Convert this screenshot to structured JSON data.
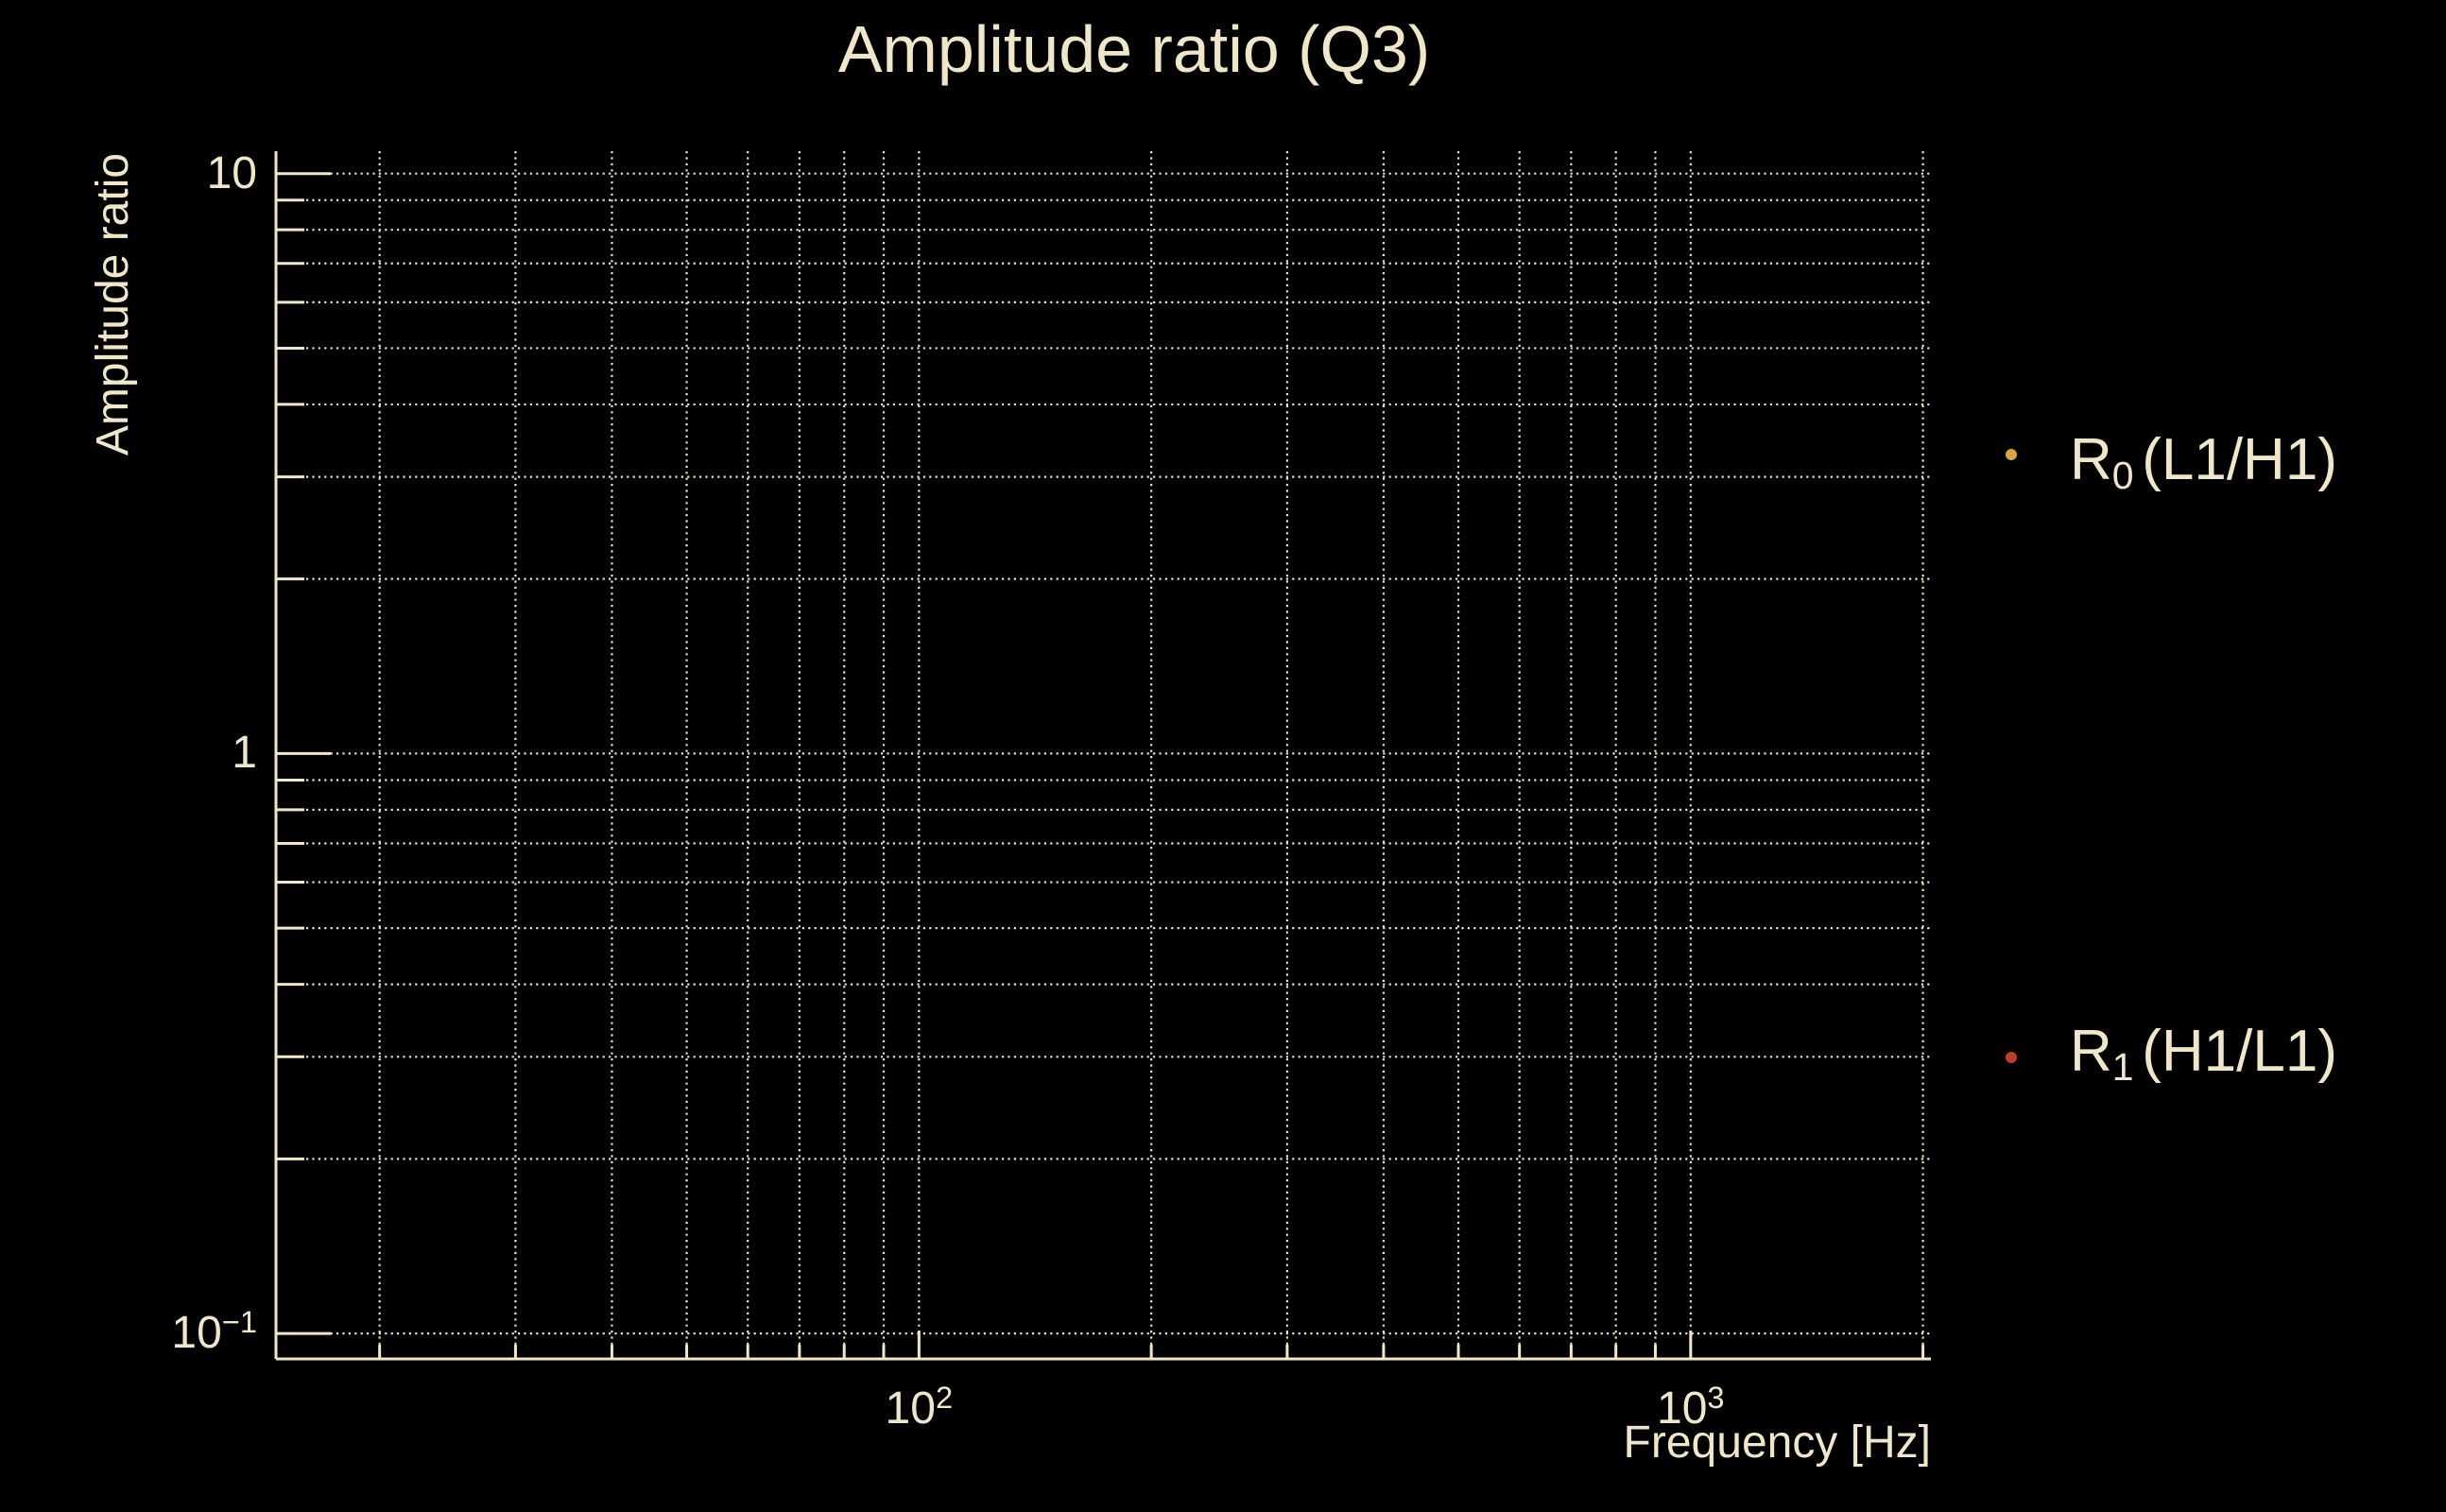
{
  "colors": {
    "background": "#000000",
    "foreground": "#f0e6c8",
    "grid": "#ece2c6",
    "series_0": "#dba73e",
    "series_1": "#c0392b"
  },
  "chart_data": {
    "type": "scatter",
    "title": "Amplitude ratio (Q3)",
    "xlabel": "Frequency [Hz]",
    "ylabel": "Amplitude ratio",
    "xscale": "log",
    "yscale": "log",
    "xlim": [
      14.68,
      2048
    ],
    "ylim": [
      0.0904,
      10.93
    ],
    "grid": {
      "which": "both",
      "linestyle": "dotted",
      "on": true
    },
    "xticks": [
      {
        "value": 100,
        "base": "10",
        "exp": "2"
      },
      {
        "value": 1000,
        "base": "10",
        "exp": "3"
      }
    ],
    "yticks": [
      {
        "value": 10,
        "base": "10",
        "exp": ""
      },
      {
        "value": 1,
        "base": "1",
        "exp": ""
      },
      {
        "value": 0.1,
        "base": "10",
        "exp": "−1"
      }
    ],
    "legend": {
      "position": "outside-right",
      "frame": false
    },
    "series": [
      {
        "name": "R0 (L1/H1)",
        "label": {
          "main": "R",
          "sub": "0",
          "rest": "(L1/H1)"
        },
        "marker": "dot",
        "color": "#dba73e",
        "x": [],
        "y": []
      },
      {
        "name": "R1 (H1/L1)",
        "label": {
          "main": "R",
          "sub": "1",
          "rest": "(H1/L1)"
        },
        "marker": "dot",
        "color": "#c0392b",
        "x": [],
        "y": []
      }
    ]
  }
}
